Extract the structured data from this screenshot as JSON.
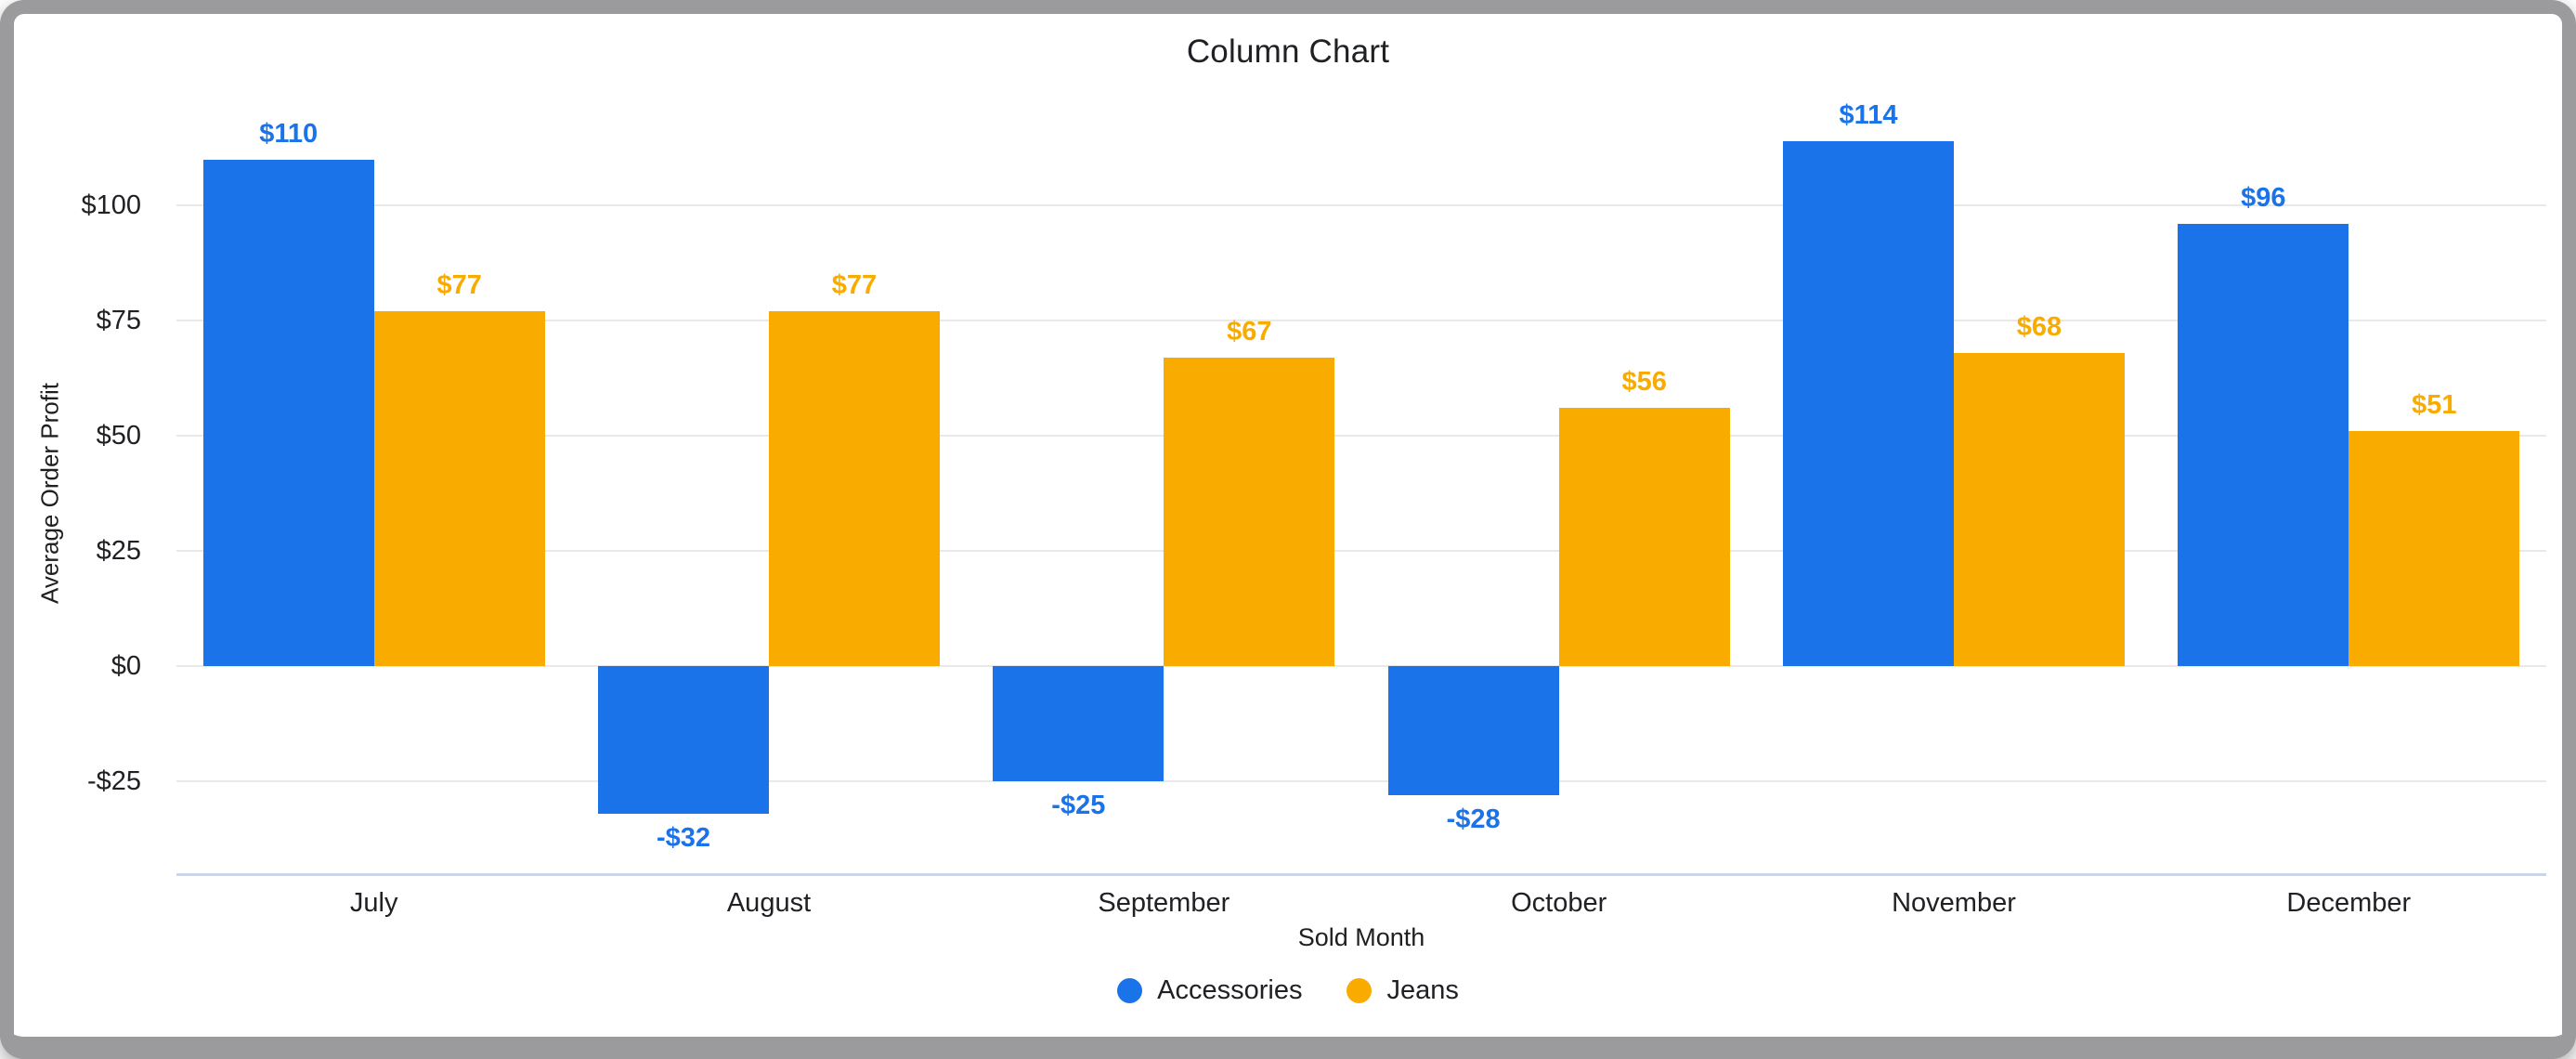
{
  "frame": {
    "border_color": "#9b9b9e",
    "background": "#ffffff"
  },
  "chart_data": {
    "type": "bar",
    "title": "Column Chart",
    "xlabel": "Sold Month",
    "ylabel": "Average Order Profit",
    "categories": [
      "July",
      "August",
      "September",
      "October",
      "November",
      "December"
    ],
    "series": [
      {
        "name": "Accessories",
        "color": "#1a73e8",
        "values": [
          110,
          -32,
          -25,
          -28,
          114,
          96
        ],
        "value_labels": [
          "$110",
          "-$32",
          "-$25",
          "-$28",
          "$114",
          "$96"
        ]
      },
      {
        "name": "Jeans",
        "color": "#f9ab00",
        "values": [
          77,
          77,
          67,
          56,
          68,
          51
        ],
        "value_labels": [
          "$77",
          "$77",
          "$67",
          "$56",
          "$68",
          "$51"
        ]
      }
    ],
    "ylim": [
      -45,
      120
    ],
    "yticks": [
      {
        "value": 100,
        "label": "$100"
      },
      {
        "value": 75,
        "label": "$75"
      },
      {
        "value": 50,
        "label": "$50"
      },
      {
        "value": 25,
        "label": "$25"
      },
      {
        "value": 0,
        "label": "$0"
      },
      {
        "value": -25,
        "label": "-$25"
      }
    ],
    "grid": true,
    "legend_position": "bottom",
    "gridline_color": "#e9e9e9",
    "axis_line_color": "#ccd5e8",
    "text_color": "#202124"
  }
}
